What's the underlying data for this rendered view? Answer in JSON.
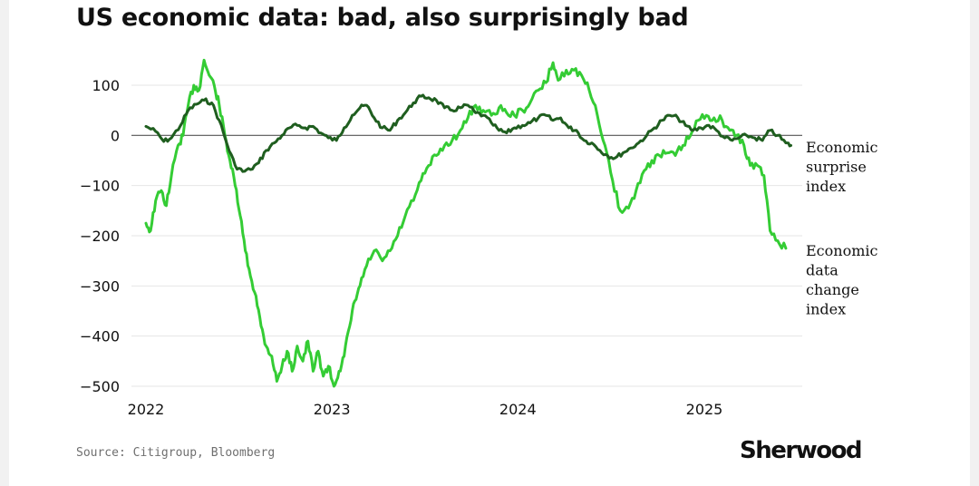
{
  "title": "US economic data: bad, also surprisingly bad",
  "source": "Source: Citigroup, Bloomberg",
  "brand": "Sherwood",
  "colors": {
    "surprise": "#1f5e1f",
    "change": "#34cc34",
    "zero_line": "#555555",
    "grid": "#e6e6e6"
  },
  "chart_data": {
    "type": "line",
    "title": "US economic data: bad, also surprisingly bad",
    "xlabel": "",
    "ylabel": "",
    "xlim": [
      "2022-01-01",
      "2025-06-30"
    ],
    "ylim": [
      -500,
      150
    ],
    "yticks": [
      100,
      0,
      -100,
      -200,
      -300,
      -400,
      -500
    ],
    "ytick_labels": [
      "100",
      "0",
      "−100",
      "−200",
      "−300",
      "−400",
      "−500"
    ],
    "xticks": [
      "2022-01-01",
      "2023-01-01",
      "2024-01-01",
      "2025-01-01"
    ],
    "xtick_labels": [
      "2022",
      "2023",
      "2024",
      "2025"
    ],
    "grid": true,
    "legend": "direct labels at right end of lines",
    "series": [
      {
        "name": "Economic surprise index",
        "label_lines": [
          "Economic",
          "surprise",
          "index"
        ],
        "color": "#1f5e1f",
        "points": [
          [
            "2022-01-01",
            18
          ],
          [
            "2022-01-20",
            8
          ],
          [
            "2022-02-05",
            -12
          ],
          [
            "2022-02-20",
            -5
          ],
          [
            "2022-03-10",
            20
          ],
          [
            "2022-03-25",
            50
          ],
          [
            "2022-04-10",
            62
          ],
          [
            "2022-04-25",
            70
          ],
          [
            "2022-05-10",
            65
          ],
          [
            "2022-05-25",
            30
          ],
          [
            "2022-06-10",
            -20
          ],
          [
            "2022-06-25",
            -60
          ],
          [
            "2022-07-10",
            -72
          ],
          [
            "2022-07-25",
            -68
          ],
          [
            "2022-08-10",
            -55
          ],
          [
            "2022-08-25",
            -30
          ],
          [
            "2022-09-10",
            -15
          ],
          [
            "2022-09-25",
            0
          ],
          [
            "2022-10-10",
            15
          ],
          [
            "2022-10-25",
            20
          ],
          [
            "2022-11-10",
            15
          ],
          [
            "2022-11-25",
            18
          ],
          [
            "2022-12-10",
            5
          ],
          [
            "2022-12-25",
            -5
          ],
          [
            "2023-01-10",
            -10
          ],
          [
            "2023-01-25",
            15
          ],
          [
            "2023-02-10",
            40
          ],
          [
            "2023-02-25",
            55
          ],
          [
            "2023-03-10",
            60
          ],
          [
            "2023-03-25",
            35
          ],
          [
            "2023-04-10",
            15
          ],
          [
            "2023-04-25",
            10
          ],
          [
            "2023-05-10",
            30
          ],
          [
            "2023-05-25",
            45
          ],
          [
            "2023-06-10",
            65
          ],
          [
            "2023-06-25",
            78
          ],
          [
            "2023-07-10",
            75
          ],
          [
            "2023-07-25",
            70
          ],
          [
            "2023-08-10",
            55
          ],
          [
            "2023-08-25",
            50
          ],
          [
            "2023-09-10",
            55
          ],
          [
            "2023-09-25",
            60
          ],
          [
            "2023-10-10",
            45
          ],
          [
            "2023-10-25",
            40
          ],
          [
            "2023-11-10",
            25
          ],
          [
            "2023-11-25",
            10
          ],
          [
            "2023-12-10",
            5
          ],
          [
            "2023-12-25",
            15
          ],
          [
            "2024-01-10",
            20
          ],
          [
            "2024-01-25",
            25
          ],
          [
            "2024-02-10",
            35
          ],
          [
            "2024-02-25",
            40
          ],
          [
            "2024-03-10",
            30
          ],
          [
            "2024-03-25",
            35
          ],
          [
            "2024-04-10",
            15
          ],
          [
            "2024-04-25",
            10
          ],
          [
            "2024-05-10",
            -10
          ],
          [
            "2024-05-25",
            -15
          ],
          [
            "2024-06-10",
            -30
          ],
          [
            "2024-06-25",
            -40
          ],
          [
            "2024-07-10",
            -45
          ],
          [
            "2024-07-25",
            -35
          ],
          [
            "2024-08-10",
            -25
          ],
          [
            "2024-08-25",
            -15
          ],
          [
            "2024-09-10",
            0
          ],
          [
            "2024-09-25",
            15
          ],
          [
            "2024-10-10",
            30
          ],
          [
            "2024-10-25",
            40
          ],
          [
            "2024-11-10",
            35
          ],
          [
            "2024-11-25",
            20
          ],
          [
            "2024-12-10",
            10
          ],
          [
            "2024-12-25",
            15
          ],
          [
            "2025-01-10",
            20
          ],
          [
            "2025-01-25",
            10
          ],
          [
            "2025-02-10",
            -5
          ],
          [
            "2025-02-25",
            -10
          ],
          [
            "2025-03-10",
            -5
          ],
          [
            "2025-03-25",
            0
          ],
          [
            "2025-04-10",
            -5
          ],
          [
            "2025-04-25",
            -10
          ],
          [
            "2025-05-10",
            10
          ],
          [
            "2025-05-25",
            0
          ],
          [
            "2025-06-10",
            -15
          ],
          [
            "2025-06-20",
            -20
          ]
        ]
      },
      {
        "name": "Economic data change index",
        "label_lines": [
          "Economic",
          "data",
          "change",
          "index"
        ],
        "color": "#34cc34",
        "points": [
          [
            "2022-01-01",
            -175
          ],
          [
            "2022-01-10",
            -190
          ],
          [
            "2022-01-20",
            -130
          ],
          [
            "2022-01-31",
            -110
          ],
          [
            "2022-02-10",
            -140
          ],
          [
            "2022-02-20",
            -80
          ],
          [
            "2022-03-05",
            -20
          ],
          [
            "2022-03-15",
            0
          ],
          [
            "2022-03-25",
            60
          ],
          [
            "2022-04-05",
            100
          ],
          [
            "2022-04-15",
            90
          ],
          [
            "2022-04-25",
            150
          ],
          [
            "2022-05-05",
            120
          ],
          [
            "2022-05-15",
            100
          ],
          [
            "2022-05-25",
            60
          ],
          [
            "2022-06-05",
            0
          ],
          [
            "2022-06-15",
            -50
          ],
          [
            "2022-06-25",
            -100
          ],
          [
            "2022-07-05",
            -160
          ],
          [
            "2022-07-15",
            -230
          ],
          [
            "2022-07-25",
            -280
          ],
          [
            "2022-08-05",
            -320
          ],
          [
            "2022-08-15",
            -380
          ],
          [
            "2022-08-25",
            -420
          ],
          [
            "2022-09-05",
            -440
          ],
          [
            "2022-09-15",
            -490
          ],
          [
            "2022-09-25",
            -460
          ],
          [
            "2022-10-05",
            -430
          ],
          [
            "2022-10-15",
            -470
          ],
          [
            "2022-10-25",
            -420
          ],
          [
            "2022-11-05",
            -450
          ],
          [
            "2022-11-15",
            -410
          ],
          [
            "2022-11-25",
            -470
          ],
          [
            "2022-12-05",
            -430
          ],
          [
            "2022-12-15",
            -480
          ],
          [
            "2022-12-25",
            -460
          ],
          [
            "2023-01-05",
            -500
          ],
          [
            "2023-01-15",
            -470
          ],
          [
            "2023-01-25",
            -440
          ],
          [
            "2023-02-05",
            -380
          ],
          [
            "2023-02-15",
            -330
          ],
          [
            "2023-02-25",
            -300
          ],
          [
            "2023-03-10",
            -260
          ],
          [
            "2023-03-25",
            -230
          ],
          [
            "2023-04-10",
            -250
          ],
          [
            "2023-04-25",
            -230
          ],
          [
            "2023-05-10",
            -200
          ],
          [
            "2023-05-25",
            -160
          ],
          [
            "2023-06-10",
            -130
          ],
          [
            "2023-06-25",
            -90
          ],
          [
            "2023-07-10",
            -60
          ],
          [
            "2023-07-25",
            -40
          ],
          [
            "2023-08-10",
            -20
          ],
          [
            "2023-08-25",
            -10
          ],
          [
            "2023-09-10",
            10
          ],
          [
            "2023-09-25",
            35
          ],
          [
            "2023-10-10",
            60
          ],
          [
            "2023-10-25",
            50
          ],
          [
            "2023-11-10",
            40
          ],
          [
            "2023-11-25",
            55
          ],
          [
            "2023-12-10",
            45
          ],
          [
            "2023-12-25",
            40
          ],
          [
            "2024-01-10",
            50
          ],
          [
            "2024-01-25",
            65
          ],
          [
            "2024-02-10",
            90
          ],
          [
            "2024-02-25",
            105
          ],
          [
            "2024-03-10",
            145
          ],
          [
            "2024-03-20",
            110
          ],
          [
            "2024-04-05",
            130
          ],
          [
            "2024-04-20",
            130
          ],
          [
            "2024-05-05",
            120
          ],
          [
            "2024-05-20",
            90
          ],
          [
            "2024-06-05",
            40
          ],
          [
            "2024-06-20",
            -20
          ],
          [
            "2024-07-05",
            -90
          ],
          [
            "2024-07-20",
            -150
          ],
          [
            "2024-08-05",
            -145
          ],
          [
            "2024-08-20",
            -110
          ],
          [
            "2024-09-05",
            -70
          ],
          [
            "2024-09-20",
            -50
          ],
          [
            "2024-10-05",
            -40
          ],
          [
            "2024-10-20",
            -35
          ],
          [
            "2024-11-05",
            -40
          ],
          [
            "2024-11-20",
            -20
          ],
          [
            "2024-12-05",
            0
          ],
          [
            "2024-12-20",
            30
          ],
          [
            "2025-01-05",
            40
          ],
          [
            "2025-01-20",
            35
          ],
          [
            "2025-02-05",
            30
          ],
          [
            "2025-02-20",
            10
          ],
          [
            "2025-03-05",
            0
          ],
          [
            "2025-03-20",
            -20
          ],
          [
            "2025-04-01",
            -60
          ],
          [
            "2025-04-15",
            -60
          ],
          [
            "2025-04-28",
            -80
          ],
          [
            "2025-05-10",
            -190
          ],
          [
            "2025-05-25",
            -210
          ],
          [
            "2025-06-10",
            -225
          ]
        ]
      }
    ]
  }
}
